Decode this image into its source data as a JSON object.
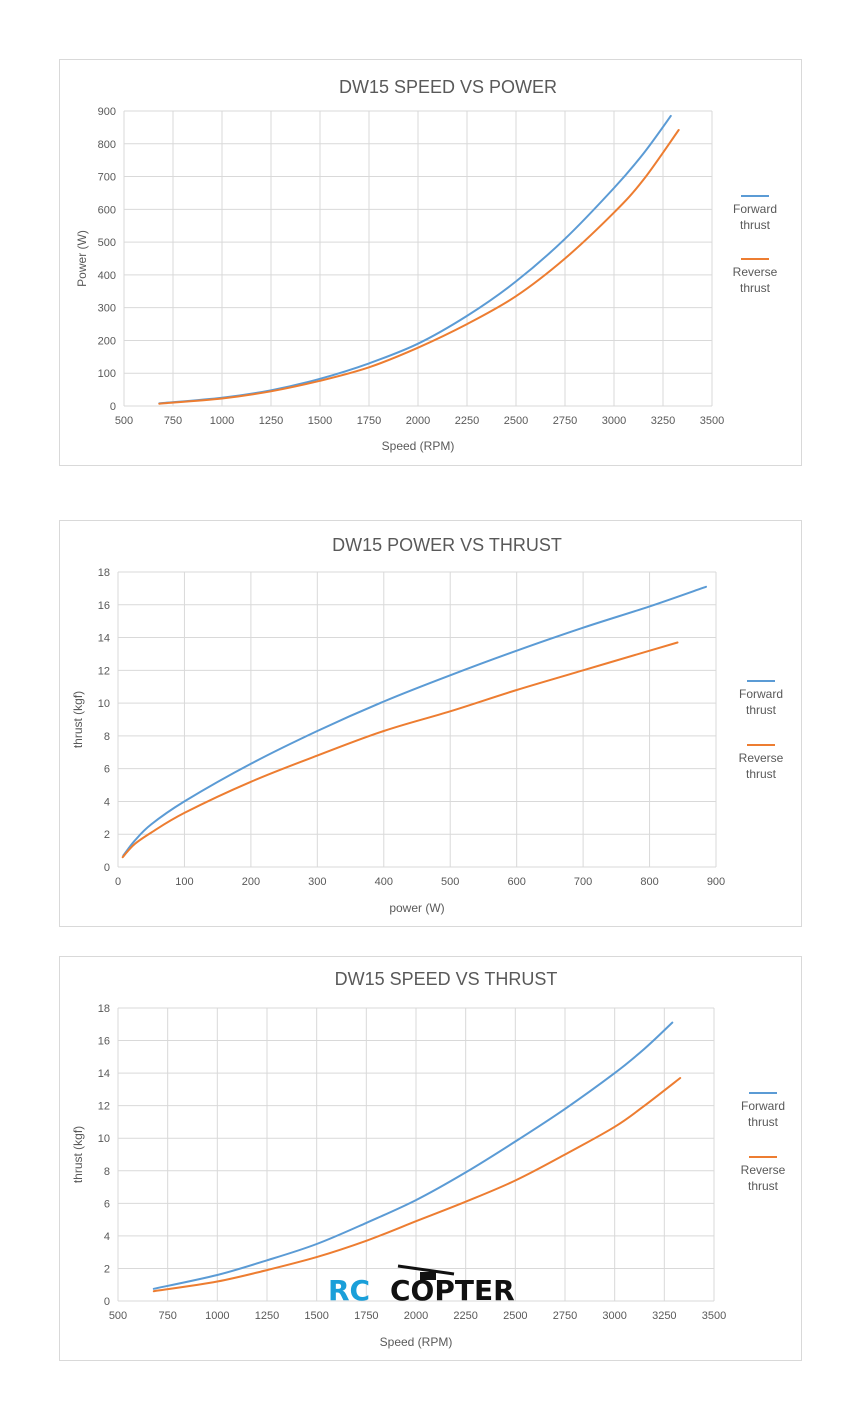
{
  "watermark": {
    "text_rc": "RC",
    "text_copter": "COPTER",
    "color_rc": "#1a9fd9",
    "color_copter": "#111111"
  },
  "colors": {
    "forward": "#5b9bd5",
    "reverse": "#ed7d31",
    "grid": "#d9d9d9",
    "text": "#595959"
  },
  "chart_data": [
    {
      "type": "line",
      "title": "DW15 SPEED VS POWER",
      "xlabel": "Speed (RPM)",
      "ylabel": "Power (W)",
      "xlim": [
        500,
        3500
      ],
      "ylim": [
        0,
        900
      ],
      "xticks": [
        500,
        750,
        1000,
        1250,
        1500,
        1750,
        2000,
        2250,
        2500,
        2750,
        3000,
        3250,
        3500
      ],
      "yticks": [
        0,
        100,
        200,
        300,
        400,
        500,
        600,
        700,
        800,
        900
      ],
      "grid": true,
      "legend_position": "right",
      "series": [
        {
          "name": "Forward thrust",
          "color": "#5b9bd5",
          "x": [
            680,
            1000,
            1250,
            1500,
            1750,
            2000,
            2250,
            2500,
            2750,
            3000,
            3150,
            3290
          ],
          "y": [
            8,
            25,
            48,
            83,
            130,
            190,
            275,
            380,
            510,
            665,
            770,
            885
          ]
        },
        {
          "name": "Reverse thrust",
          "color": "#ed7d31",
          "x": [
            680,
            1000,
            1250,
            1500,
            1750,
            2000,
            2250,
            2500,
            2750,
            3000,
            3150,
            3330
          ],
          "y": [
            7,
            23,
            45,
            77,
            118,
            178,
            250,
            335,
            450,
            590,
            690,
            842
          ]
        }
      ]
    },
    {
      "type": "line",
      "title": "DW15 POWER VS THRUST",
      "xlabel": "power (W)",
      "ylabel": "thrust (kgf)",
      "xlim": [
        0,
        900
      ],
      "ylim": [
        0,
        18
      ],
      "xticks": [
        0,
        100,
        200,
        300,
        400,
        500,
        600,
        700,
        800,
        900
      ],
      "yticks": [
        0,
        2,
        4,
        6,
        8,
        10,
        12,
        14,
        16,
        18
      ],
      "grid": true,
      "legend_position": "right",
      "series": [
        {
          "name": "Forward thrust",
          "color": "#5b9bd5",
          "x": [
            8,
            25,
            50,
            100,
            200,
            300,
            400,
            500,
            600,
            700,
            800,
            885
          ],
          "y": [
            0.7,
            1.6,
            2.6,
            4.0,
            6.3,
            8.3,
            10.1,
            11.7,
            13.2,
            14.6,
            15.9,
            17.1
          ]
        },
        {
          "name": "Reverse thrust",
          "color": "#ed7d31",
          "x": [
            7,
            25,
            50,
            100,
            200,
            300,
            400,
            500,
            600,
            700,
            800,
            842
          ],
          "y": [
            0.6,
            1.4,
            2.1,
            3.3,
            5.2,
            6.8,
            8.3,
            9.5,
            10.8,
            12.0,
            13.2,
            13.7
          ]
        }
      ]
    },
    {
      "type": "line",
      "title": "DW15 SPEED VS THRUST",
      "xlabel": "Speed (RPM)",
      "ylabel": "thrust (kgf)",
      "xlim": [
        500,
        3500
      ],
      "ylim": [
        0,
        18
      ],
      "xticks": [
        500,
        750,
        1000,
        1250,
        1500,
        1750,
        2000,
        2250,
        2500,
        2750,
        3000,
        3250,
        3500
      ],
      "yticks": [
        0,
        2,
        4,
        6,
        8,
        10,
        12,
        14,
        16,
        18
      ],
      "grid": true,
      "legend_position": "right",
      "series": [
        {
          "name": "Forward thrust",
          "color": "#5b9bd5",
          "x": [
            680,
            1000,
            1250,
            1500,
            1750,
            2000,
            2250,
            2500,
            2750,
            3000,
            3150,
            3290
          ],
          "y": [
            0.75,
            1.6,
            2.5,
            3.5,
            4.8,
            6.2,
            7.9,
            9.8,
            11.8,
            14.0,
            15.5,
            17.1
          ]
        },
        {
          "name": "Reverse thrust",
          "color": "#ed7d31",
          "x": [
            680,
            1000,
            1250,
            1500,
            1750,
            2000,
            2250,
            2500,
            2750,
            3000,
            3150,
            3330
          ],
          "y": [
            0.6,
            1.2,
            1.9,
            2.7,
            3.7,
            4.9,
            6.1,
            7.4,
            9.0,
            10.7,
            12.0,
            13.7
          ]
        }
      ]
    }
  ]
}
